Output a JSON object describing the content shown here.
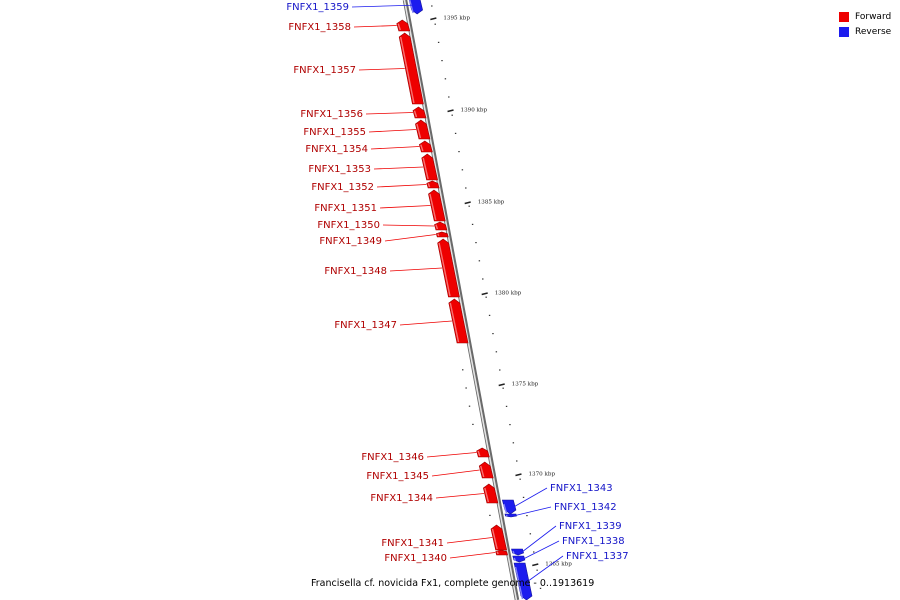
{
  "caption": "Francisella cf. novicida Fx1, complete genome - 0..1913619",
  "colors": {
    "forward": "#ee0000",
    "reverse": "#1c1cee",
    "backbone": "#888888"
  },
  "legend": [
    {
      "label": "Forward",
      "color": "#ee0000"
    },
    {
      "label": "Reverse",
      "color": "#1c1cee"
    }
  ],
  "ticks": [
    {
      "kbp": 1395,
      "label": "1395 kbp"
    },
    {
      "kbp": 1390,
      "label": "1390 kbp"
    },
    {
      "kbp": 1385,
      "label": "1385 kbp"
    },
    {
      "kbp": 1380,
      "label": "1380 kbp"
    },
    {
      "kbp": 1375,
      "label": "1375 kbp"
    },
    {
      "kbp": 1370,
      "label": "1370 kbp"
    },
    {
      "kbp": 1365,
      "label": "1365 kbp"
    }
  ],
  "genes": [
    {
      "name": "FNFX1_1359",
      "strand": "reverse"
    },
    {
      "name": "FNFX1_1358",
      "strand": "forward"
    },
    {
      "name": "FNFX1_1357",
      "strand": "forward"
    },
    {
      "name": "FNFX1_1356",
      "strand": "forward"
    },
    {
      "name": "FNFX1_1355",
      "strand": "forward"
    },
    {
      "name": "FNFX1_1354",
      "strand": "forward"
    },
    {
      "name": "FNFX1_1353",
      "strand": "forward"
    },
    {
      "name": "FNFX1_1352",
      "strand": "forward"
    },
    {
      "name": "FNFX1_1351",
      "strand": "forward"
    },
    {
      "name": "FNFX1_1350",
      "strand": "forward"
    },
    {
      "name": "FNFX1_1349",
      "strand": "forward"
    },
    {
      "name": "FNFX1_1348",
      "strand": "forward"
    },
    {
      "name": "FNFX1_1347",
      "strand": "forward"
    },
    {
      "name": "FNFX1_1346",
      "strand": "forward"
    },
    {
      "name": "FNFX1_1345",
      "strand": "forward"
    },
    {
      "name": "FNFX1_1344",
      "strand": "forward"
    },
    {
      "name": "FNFX1_1343",
      "strand": "reverse"
    },
    {
      "name": "FNFX1_1342",
      "strand": "reverse"
    },
    {
      "name": "FNFX1_1341",
      "strand": "forward"
    },
    {
      "name": "FNFX1_1340",
      "strand": "forward"
    },
    {
      "name": "FNFX1_1339",
      "strand": "reverse"
    },
    {
      "name": "FNFX1_1338",
      "strand": "reverse"
    },
    {
      "name": "FNFX1_1337",
      "strand": "reverse"
    }
  ]
}
